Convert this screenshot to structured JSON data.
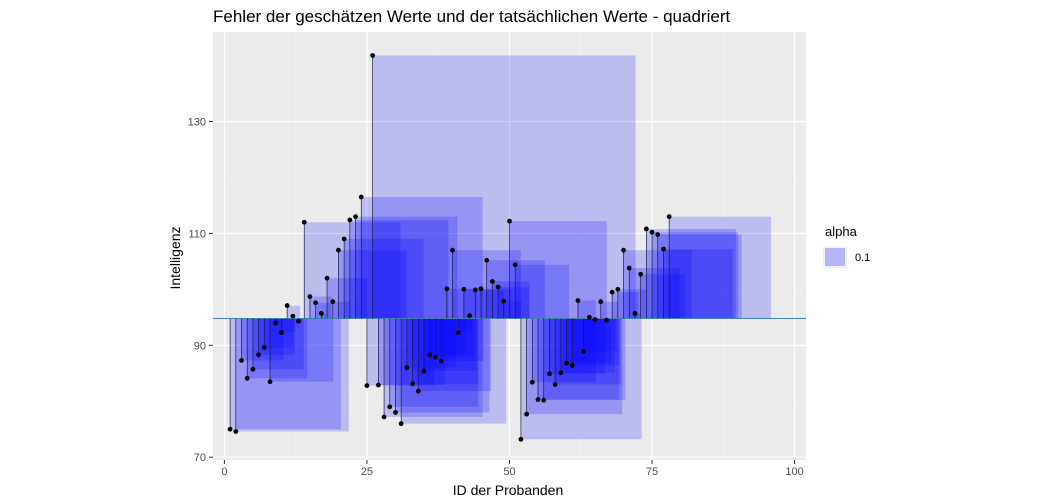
{
  "chart_data": {
    "type": "scatter",
    "title": "Fehler der geschätzen Werte und der tatsächlichen Werte - quadriert",
    "xlabel": "ID der Probanden",
    "ylabel": "Intelligenz",
    "xlim": [
      -2,
      102
    ],
    "ylim": [
      69.5,
      146
    ],
    "xticks": [
      0,
      25,
      50,
      75,
      100
    ],
    "yticks": [
      70,
      90,
      110,
      130
    ],
    "reference_line": 94.8,
    "grid": true,
    "legend": {
      "title": "alpha",
      "entries": [
        "0.1"
      ],
      "position": "right"
    },
    "colors": {
      "panel": "#EBEBEB",
      "grid_major": "#FFFFFF",
      "grid_minor": "#F2F2F2",
      "square_fill": "#0000FF",
      "square_opacity": 0.2,
      "point": "#000000",
      "segment": "#1A1A4A",
      "ref_line": "#4682B4"
    },
    "x": [
      1,
      2,
      3,
      4,
      5,
      6,
      7,
      8,
      9,
      10,
      11,
      12,
      13,
      14,
      15,
      16,
      17,
      18,
      19,
      20,
      21,
      22,
      23,
      24,
      25,
      26,
      27,
      28,
      29,
      30,
      31,
      32,
      33,
      34,
      35,
      36,
      37,
      38,
      39,
      40,
      41,
      42,
      43,
      44,
      45,
      46,
      47,
      48,
      49,
      50,
      51,
      52,
      53,
      54,
      55,
      56,
      57,
      58,
      59,
      60,
      61,
      62,
      63,
      64,
      65,
      66,
      67,
      68,
      69,
      70,
      71,
      72,
      73,
      74,
      75,
      76,
      77,
      78
    ],
    "y": [
      75,
      74.6,
      87.3,
      84.1,
      85.7,
      88.3,
      89.6,
      83.5,
      94,
      92.3,
      97.1,
      95.2,
      94.3,
      112,
      98.7,
      97.6,
      95.7,
      102,
      97.8,
      107,
      109,
      112.4,
      113,
      116.5,
      82.8,
      141.8,
      82.9,
      77.2,
      79,
      78,
      76,
      86,
      83.1,
      81.8,
      85.4,
      88.3,
      87.9,
      87.2,
      100.1,
      107,
      92.3,
      100,
      95.3,
      99.9,
      100.1,
      105.2,
      101.4,
      100.4,
      97.9,
      112.2,
      104.4,
      73.2,
      77.7,
      83.4,
      80.3,
      80.2,
      84.9,
      83,
      85.1,
      86.8,
      86.4,
      98,
      88.9,
      95,
      94.6,
      97.8,
      94.5,
      99.5,
      100,
      107,
      103.8,
      95.7,
      102.7,
      110.8,
      110.2,
      109.8,
      107.2,
      113
    ]
  }
}
